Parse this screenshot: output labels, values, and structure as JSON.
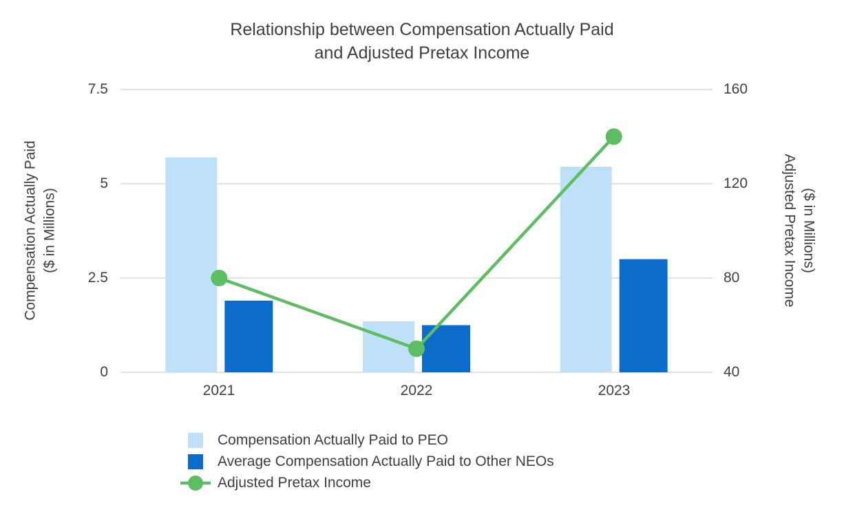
{
  "title": {
    "line1": "Relationship between Compensation Actually Paid",
    "line2": "and Adjusted Pretax Income"
  },
  "left_axis": {
    "label_line1": "Compensation Actually Paid",
    "label_line2": "($ in Millions)",
    "ticks": [
      "7.5",
      "5",
      "2.5",
      "0"
    ]
  },
  "right_axis": {
    "label_line1": "Adjusted Pretax Income",
    "label_line2": "($ in Millions)",
    "ticks": [
      "160",
      "120",
      "80",
      "40"
    ]
  },
  "legend": [
    {
      "label": "Compensation Actually Paid to PEO",
      "color": "#BEE0F8",
      "type": "square"
    },
    {
      "label": "Average Compensation Actually Paid to Other NEOs",
      "color": "#0C6CCB",
      "type": "square"
    },
    {
      "label": "Adjusted Pretax Income",
      "color": "#5CBE60",
      "type": "line-marker"
    }
  ],
  "chart_data": {
    "type": "bar",
    "title": "Relationship between Compensation Actually Paid and Adjusted Pretax Income",
    "categories": [
      "2021",
      "2022",
      "2023"
    ],
    "series": [
      {
        "name": "Compensation Actually Paid to PEO",
        "type": "bar",
        "axis": "left",
        "color": "#BEE0F8",
        "values": [
          5.7,
          1.35,
          5.45
        ]
      },
      {
        "name": "Average Compensation Actually Paid to Other NEOs",
        "type": "bar",
        "axis": "left",
        "color": "#0C6CCB",
        "values": [
          1.9,
          1.25,
          3.0
        ]
      },
      {
        "name": "Adjusted Pretax Income",
        "type": "line",
        "axis": "right",
        "color": "#5CBE60",
        "values": [
          80,
          50,
          140
        ]
      }
    ],
    "left_ylabel": "Compensation Actually Paid ($ in Millions)",
    "right_ylabel": "Adjusted Pretax Income ($ in Millions)",
    "left_ylim": [
      0,
      7.5
    ],
    "right_ylim": [
      40,
      160
    ],
    "grid": true,
    "grid_color": "#D9D9D9",
    "legend_position": "bottom-left"
  }
}
